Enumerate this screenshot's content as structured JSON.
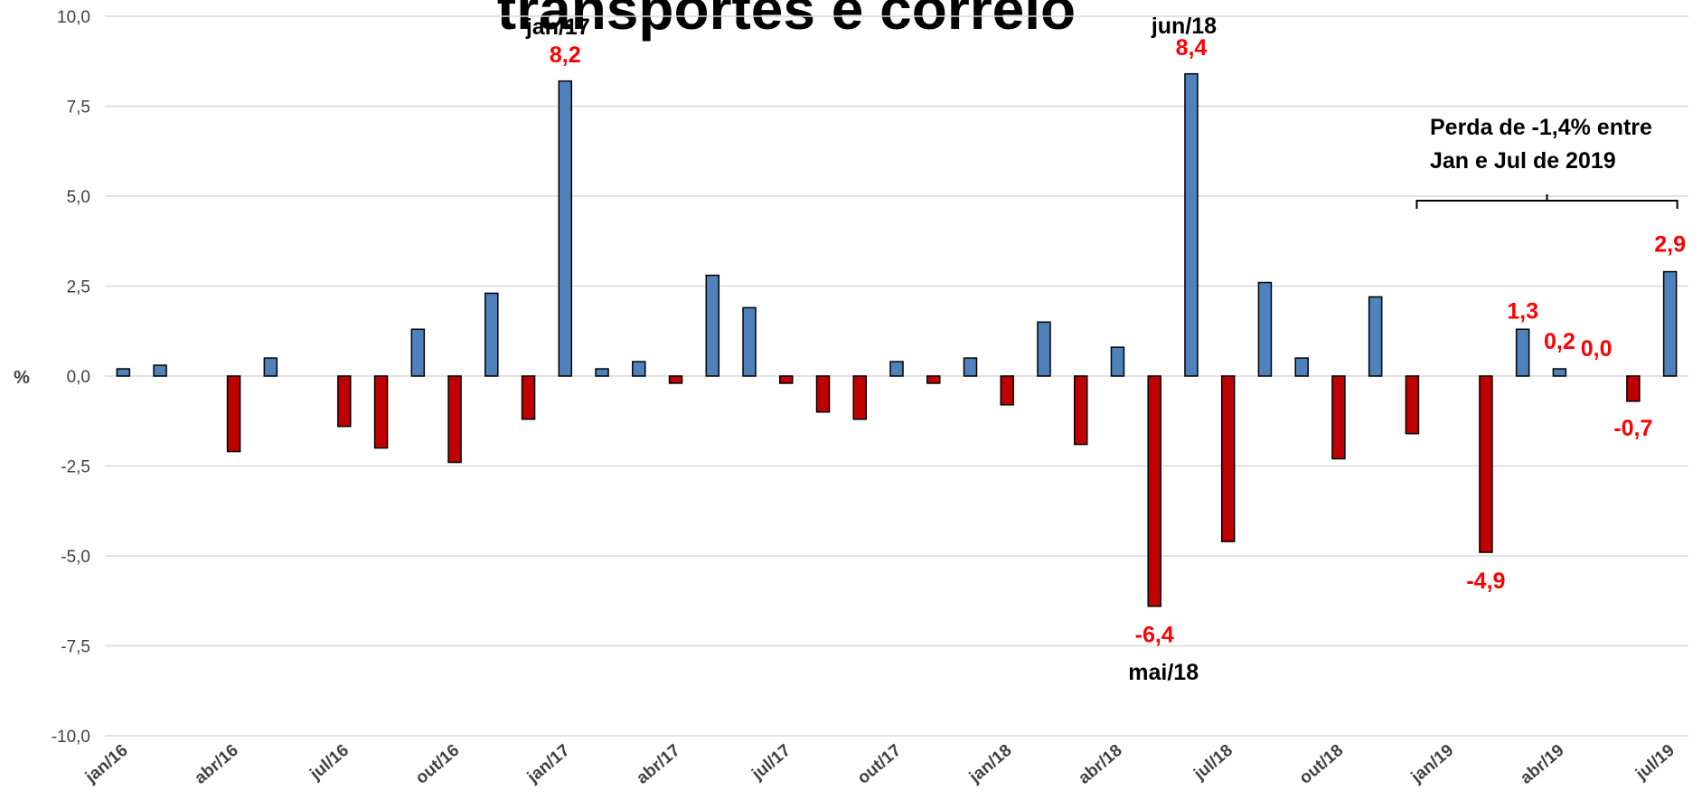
{
  "chart_data": {
    "type": "bar",
    "title": "transportes e correio",
    "ylabel": "%",
    "xlabel": "",
    "ylim": [
      -10,
      10
    ],
    "yticks": [
      "10,0",
      "7,5",
      "5,0",
      "2,5",
      "0,0",
      "-2,5",
      "-5,0",
      "-7,5",
      "-10,0"
    ],
    "ytick_values": [
      10,
      7.5,
      5,
      2.5,
      0,
      -2.5,
      -5,
      -7.5,
      -10
    ],
    "grid": true,
    "colors": {
      "positive": "#4f81bd",
      "negative": "#c00000",
      "label_red": "#ff0000"
    },
    "categories": [
      "jan/16",
      "fev/16",
      "mar/16",
      "abr/16",
      "mai/16",
      "jun/16",
      "jul/16",
      "ago/16",
      "set/16",
      "out/16",
      "nov/16",
      "dez/16",
      "jan/17",
      "fev/17",
      "mar/17",
      "abr/17",
      "mai/17",
      "jun/17",
      "jul/17",
      "ago/17",
      "set/17",
      "out/17",
      "nov/17",
      "dez/17",
      "jan/18",
      "fev/18",
      "mar/18",
      "abr/18",
      "mai/18",
      "jun/18",
      "jul/18",
      "ago/18",
      "set/18",
      "out/18",
      "nov/18",
      "dez/18",
      "jan/19",
      "fev/19",
      "mar/19",
      "abr/19",
      "mai/19",
      "jun/19",
      "jul/19"
    ],
    "x_tick_labels": [
      "jan/16",
      "abr/16",
      "jul/16",
      "out/16",
      "jan/17",
      "abr/17",
      "jul/17",
      "out/17",
      "jan/18",
      "abr/18",
      "jul/18",
      "out/18",
      "jan/19",
      "abr/19",
      "jul/19"
    ],
    "values": [
      0.2,
      0.3,
      0.0,
      -2.1,
      0.5,
      0.0,
      -1.4,
      -2.0,
      1.3,
      -2.4,
      2.3,
      -1.2,
      8.2,
      0.2,
      0.4,
      -0.2,
      2.8,
      1.9,
      -0.2,
      -1.0,
      -1.2,
      0.4,
      -0.2,
      0.5,
      -0.8,
      1.5,
      -1.9,
      0.8,
      -6.4,
      8.4,
      -4.6,
      2.6,
      0.5,
      -2.3,
      2.2,
      -1.6,
      0.0,
      -4.9,
      1.3,
      0.2,
      0.0,
      -0.7,
      2.9
    ],
    "data_labels": [
      {
        "index": 12,
        "text": "8,2"
      },
      {
        "index": 28,
        "text": "-6,4"
      },
      {
        "index": 29,
        "text": "8,4"
      },
      {
        "index": 37,
        "text": "-4,9"
      },
      {
        "index": 38,
        "text": "1,3"
      },
      {
        "index": 39,
        "text": "0,2"
      },
      {
        "index": 40,
        "text": "0,0"
      },
      {
        "index": 41,
        "text": "-0,7"
      },
      {
        "index": 42,
        "text": "2,9"
      }
    ],
    "month_annotations": [
      {
        "index": 12,
        "text": "jan/17",
        "position": "above"
      },
      {
        "index": 29,
        "text": "jun/18",
        "position": "above"
      },
      {
        "index": 28,
        "text": "mai/18",
        "position": "below"
      }
    ],
    "bracket_note": {
      "line1": "Perda de -1,4% entre",
      "line2": "Jan e Jul de 2019",
      "from_index": 35.5,
      "to_index": 42.5
    }
  }
}
